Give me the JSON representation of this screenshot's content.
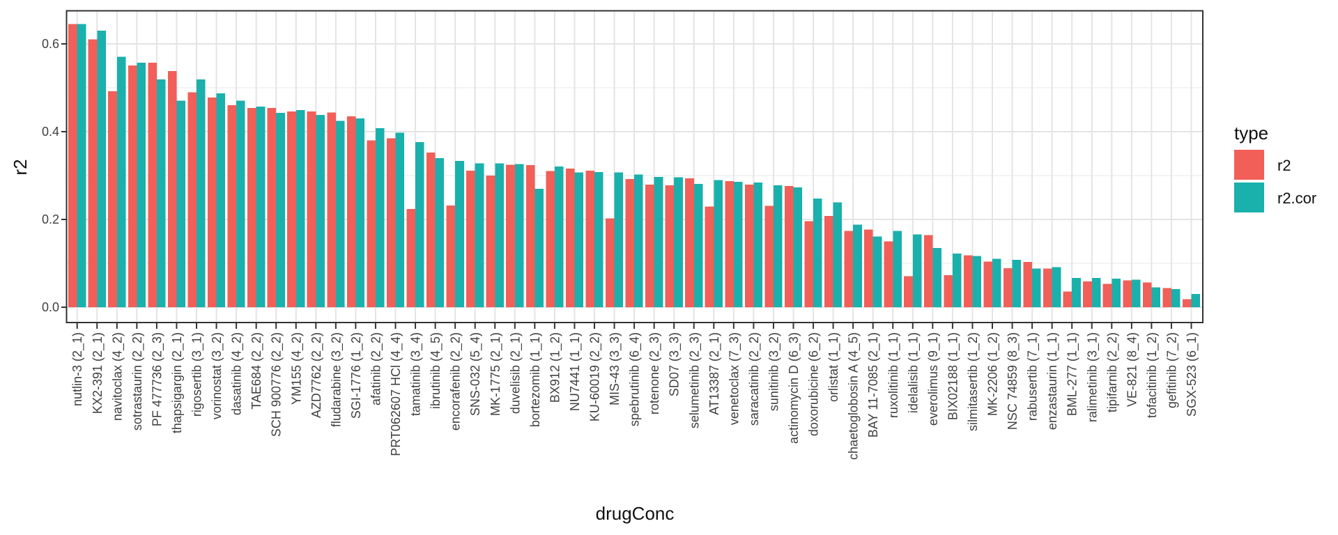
{
  "chart_data": {
    "type": "bar",
    "title": "",
    "xlabel": "drugConc",
    "ylabel": "r2",
    "legend_title": "type",
    "legend_position": "right",
    "grid": true,
    "ylim": [
      0,
      0.675
    ],
    "y_ticks": [
      "0.0",
      "0.2",
      "0.4",
      "0.6"
    ],
    "y_tick_values": [
      0.0,
      0.2,
      0.4,
      0.6
    ],
    "y_minor_tick_values": [
      0.1,
      0.3,
      0.5
    ],
    "bar_layout": "dodged",
    "x_label_rotation_deg": 90,
    "categories": [
      "nutlin-3 (2_1)",
      "KX2-391 (2_1)",
      "navitoclax (4_2)",
      "sotrastaurin (2_2)",
      "PF 477736 (2_3)",
      "thapsigargin (2_1)",
      "rigosertib (3_1)",
      "vorinostat (3_2)",
      "dasatinib (4_2)",
      "TAE684 (2_2)",
      "SCH 900776 (2_2)",
      "YM155 (4_2)",
      "AZD7762 (2_2)",
      "fludarabine (3_2)",
      "SGI-1776 (1_2)",
      "afatinib (2_2)",
      "PRT062607 HCl (4_4)",
      "tamatinib (3_4)",
      "ibrutinib (4_5)",
      "encorafenib (2_2)",
      "SNS-032 (5_4)",
      "MK-1775 (2_1)",
      "duvelisib (2_1)",
      "bortezomib (1_1)",
      "BX912 (1_2)",
      "NU7441 (1_1)",
      "KU-60019 (2_2)",
      "MIS-43 (3_3)",
      "spebrutinib (6_4)",
      "rotenone (2_3)",
      "SD07 (3_3)",
      "selumetinib (2_3)",
      "AT13387 (2_1)",
      "venetoclax (7_3)",
      "saracatinib (2_2)",
      "sunitinib (3_2)",
      "actinomycin D (6_3)",
      "doxorubicine (6_2)",
      "orlistat (1_1)",
      "chaetoglobosin A (4_5)",
      "BAY 11-7085 (2_1)",
      "ruxolitinib (1_1)",
      "idelalisib (1_1)",
      "everolimus (9_1)",
      "BIX02188 (1_1)",
      "silmitasertib (1_2)",
      "MK-2206 (1_2)",
      "NSC 74859 (8_3)",
      "rabusertib (7_1)",
      "enzastaurin (1_1)",
      "BML-277 (1_1)",
      "ralimetinib (3_1)",
      "tipifarnib (2_2)",
      "VE-821 (8_4)",
      "tofacitinib (1_2)",
      "gefitinib (7_2)",
      "SGX-523 (6_1)"
    ],
    "series": [
      {
        "name": "r2",
        "color": "#F15F58",
        "values": [
          0.645,
          0.61,
          0.492,
          0.551,
          0.557,
          0.538,
          0.49,
          0.478,
          0.46,
          0.454,
          0.454,
          0.446,
          0.446,
          0.444,
          0.435,
          0.38,
          0.385,
          0.224,
          0.352,
          0.232,
          0.311,
          0.3,
          0.325,
          0.324,
          0.31,
          0.316,
          0.311,
          0.202,
          0.292,
          0.279,
          0.278,
          0.294,
          0.229,
          0.287,
          0.279,
          0.231,
          0.276,
          0.196,
          0.208,
          0.174,
          0.177,
          0.15,
          0.071,
          0.164,
          0.073,
          0.118,
          0.104,
          0.089,
          0.103,
          0.088,
          0.036,
          0.059,
          0.053,
          0.061,
          0.056,
          0.044,
          0.018
        ]
      },
      {
        "name": "r2.cor",
        "color": "#1AB0AC",
        "values": [
          0.645,
          0.63,
          0.571,
          0.557,
          0.519,
          0.471,
          0.519,
          0.487,
          0.471,
          0.457,
          0.443,
          0.449,
          0.438,
          0.425,
          0.43,
          0.408,
          0.398,
          0.376,
          0.34,
          0.333,
          0.328,
          0.328,
          0.326,
          0.27,
          0.321,
          0.307,
          0.308,
          0.307,
          0.302,
          0.297,
          0.296,
          0.281,
          0.29,
          0.286,
          0.284,
          0.278,
          0.273,
          0.248,
          0.239,
          0.188,
          0.161,
          0.174,
          0.166,
          0.135,
          0.122,
          0.117,
          0.11,
          0.108,
          0.088,
          0.091,
          0.067,
          0.067,
          0.065,
          0.063,
          0.045,
          0.041,
          0.03
        ]
      }
    ]
  },
  "colors": {
    "background": "#FFFFFF",
    "panel_background": "#FFFFFF",
    "panel_border": "#333333",
    "grid_major": "#E4E4E4",
    "grid_minor": "#F1F1F1",
    "tick": "#333333",
    "tick_text": "#404040",
    "title_text": "#111111"
  }
}
